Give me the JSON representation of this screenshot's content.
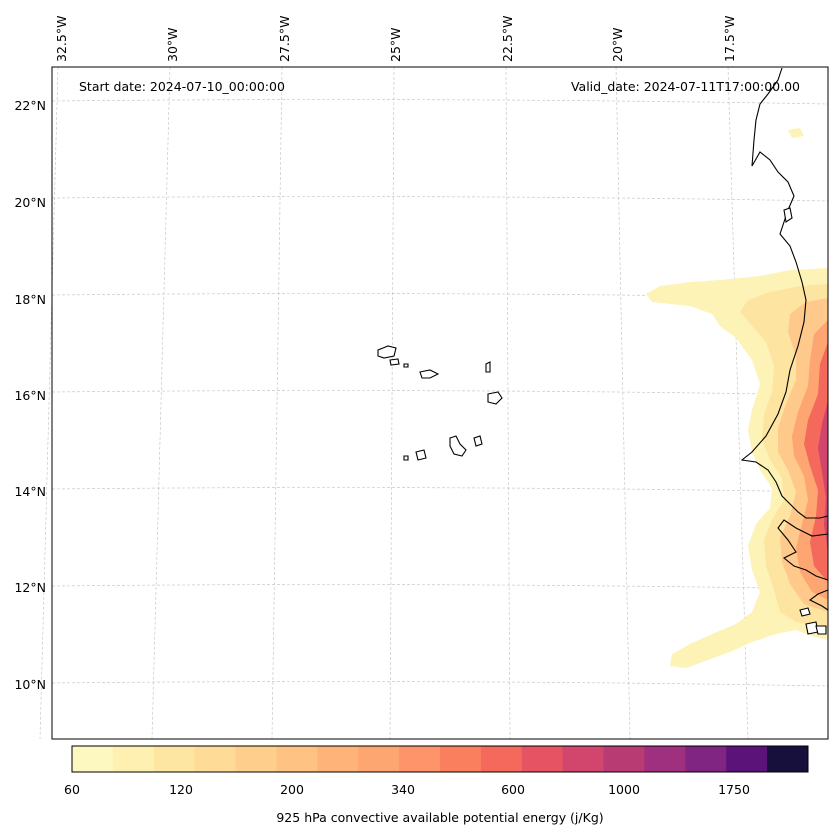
{
  "map": {
    "start_date_label": "Start date: 2024-07-10_00:00:00",
    "valid_date_label": "Valid_date: 2024-07-11T17:00:00.00",
    "lon_ticks": [
      "32.5°W",
      "30°W",
      "27.5°W",
      "25°W",
      "22.5°W",
      "20°W",
      "17.5°W"
    ],
    "lat_ticks": [
      "22°N",
      "20°N",
      "18°N",
      "16°N",
      "14°N",
      "12°N",
      "10°N"
    ],
    "features": [
      "Cabo Verde islands",
      "West African coastline"
    ]
  },
  "colorbar": {
    "label": "925 hPa convective available potential energy (j/Kg)",
    "tick_labels": [
      "60",
      "120",
      "200",
      "340",
      "600",
      "1000",
      "1750"
    ],
    "colors": [
      "#fdf8bf",
      "#fdf0b0",
      "#fde6a2",
      "#fedb97",
      "#fecf8c",
      "#fec282",
      "#feb479",
      "#fea671",
      "#fd946a",
      "#fa7f5e",
      "#f4695c",
      "#e65463",
      "#d2456c",
      "#b93b74",
      "#9f2f7f",
      "#802582",
      "#5c1379",
      "#170f3c"
    ],
    "colormap": "magma_r"
  }
}
